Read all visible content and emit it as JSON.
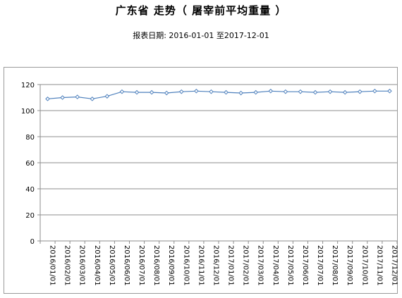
{
  "header": {
    "title": "广东省 走势（ 屠宰前平均重量 ）",
    "subtitle": "报表日期: 2016-01-01 至2017-12-01"
  },
  "chart_data": {
    "type": "line",
    "title": "广东省 走势（ 屠宰前平均重量 ）",
    "subtitle": "报表日期: 2016-01-01 至2017-12-01",
    "xlabel": "",
    "ylabel": "",
    "ylim": [
      0,
      120
    ],
    "yticks": [
      0,
      20,
      40,
      60,
      80,
      100,
      120
    ],
    "grid": "horizontal",
    "legend": "none",
    "line_color": "#4f81bd",
    "categories": [
      "2016/01/01",
      "2016/02/01",
      "2016/03/01",
      "2016/04/01",
      "2016/05/01",
      "2016/06/01",
      "2016/07/01",
      "2016/08/01",
      "2016/09/01",
      "2016/10/01",
      "2016/11/01",
      "2016/12/01",
      "2017/01/01",
      "2017/02/01",
      "2017/03/01",
      "2017/04/01",
      "2017/05/01",
      "2017/06/01",
      "2017/07/01",
      "2017/08/01",
      "2017/09/01",
      "2017/10/01",
      "2017/11/01",
      "2017/12/01"
    ],
    "series": [
      {
        "values": [
          109,
          110,
          110.5,
          109,
          111,
          114.5,
          114,
          114,
          113.5,
          114.5,
          115,
          114.5,
          114,
          113.5,
          114,
          115,
          114.5,
          114.5,
          114,
          114.5,
          114,
          114.5,
          115,
          115
        ]
      }
    ]
  }
}
